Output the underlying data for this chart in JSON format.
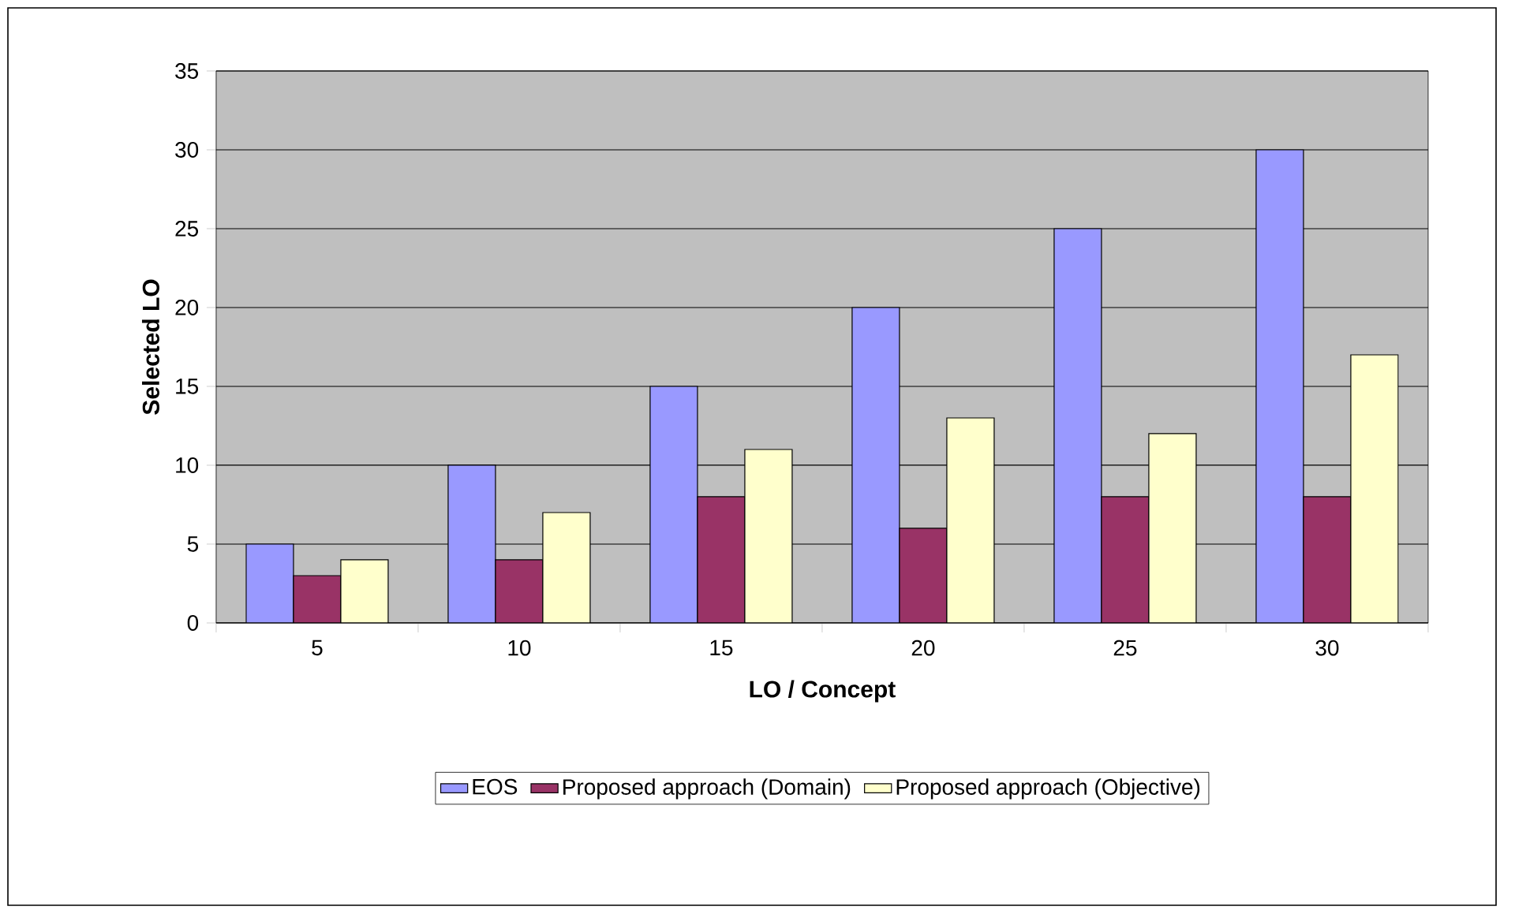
{
  "chart_data": {
    "type": "bar",
    "xlabel": "LO / Concept",
    "ylabel": "Selected LO",
    "categories": [
      "5",
      "10",
      "15",
      "20",
      "25",
      "30"
    ],
    "series": [
      {
        "name": "EOS",
        "color": "#9999ff",
        "values": [
          5,
          10,
          15,
          20,
          25,
          30
        ]
      },
      {
        "name": "Proposed approach (Domain)",
        "color": "#993366",
        "values": [
          3,
          4,
          8,
          6,
          8,
          8
        ]
      },
      {
        "name": "Proposed approach (Objective)",
        "color": "#ffffcc",
        "values": [
          4,
          7,
          11,
          13,
          12,
          17
        ]
      }
    ],
    "ylim": [
      0,
      35
    ],
    "yticks": [
      0,
      5,
      10,
      15,
      20,
      25,
      30,
      35
    ],
    "grid": "y",
    "legend": "bottom"
  }
}
